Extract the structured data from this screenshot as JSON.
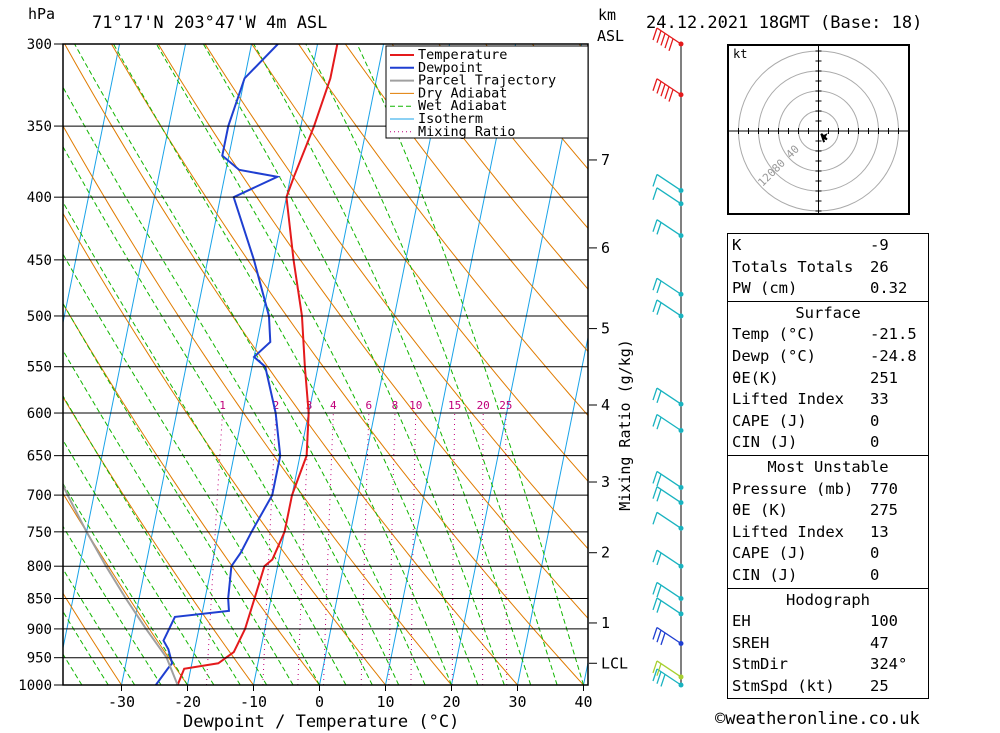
{
  "header": {
    "location": "71°17'N  203°47'W  4m  ASL",
    "datetime": "24.12.2021  18GMT  (Base: 18)",
    "hpa_label": "hPa",
    "km_label": "km",
    "asl_label": "ASL"
  },
  "colors": {
    "temperature": "#e41a1c",
    "dewpoint": "#1f3fd1",
    "parcel": "#a0a0a0",
    "dry_adiabat": "#e07b00",
    "wet_adiabat": "#11b500",
    "isotherm": "#1aa3e8",
    "mixing_ratio": "#c0007a",
    "wind_barb": "#19b3c0"
  },
  "chart_data": {
    "type": "line",
    "title": "",
    "xlabel": "Dewpoint / Temperature (°C)",
    "ylabel": "hPa",
    "xlim": [
      -40,
      40
    ],
    "pressure_levels": [
      300,
      350,
      400,
      450,
      500,
      550,
      600,
      650,
      700,
      750,
      800,
      850,
      900,
      950,
      1000
    ],
    "x_ticks": [
      -30,
      -20,
      -10,
      0,
      10,
      20,
      30,
      40
    ],
    "km_ticks": [
      {
        "label": "7",
        "p": 373
      },
      {
        "label": "6",
        "p": 440
      },
      {
        "label": "5",
        "p": 512
      },
      {
        "label": "4",
        "p": 591
      },
      {
        "label": "3",
        "p": 683
      },
      {
        "label": "2",
        "p": 780
      },
      {
        "label": "1",
        "p": 890
      },
      {
        "label": "LCL",
        "p": 960
      }
    ],
    "mixing_ratio_label": "Mixing Ratio (g/kg)",
    "mixing_ratio_values": [
      1,
      2,
      3,
      4,
      6,
      8,
      10,
      15,
      20,
      25
    ],
    "series": [
      {
        "name": "Temperature",
        "points": [
          [
            1000,
            -21.5
          ],
          [
            970,
            -21
          ],
          [
            960,
            -16
          ],
          [
            940,
            -14
          ],
          [
            920,
            -13.5
          ],
          [
            900,
            -13
          ],
          [
            850,
            -12.5
          ],
          [
            800,
            -12
          ],
          [
            790,
            -11
          ],
          [
            750,
            -10
          ],
          [
            700,
            -10
          ],
          [
            650,
            -9
          ],
          [
            600,
            -10
          ],
          [
            550,
            -12
          ],
          [
            500,
            -14
          ],
          [
            450,
            -17
          ],
          [
            400,
            -20
          ],
          [
            385,
            -19.5
          ],
          [
            350,
            -18
          ],
          [
            320,
            -17
          ],
          [
            300,
            -17
          ]
        ]
      },
      {
        "name": "Dewpoint",
        "points": [
          [
            1000,
            -24.8
          ],
          [
            970,
            -23.5
          ],
          [
            960,
            -23
          ],
          [
            935,
            -24
          ],
          [
            920,
            -25
          ],
          [
            880,
            -24
          ],
          [
            870,
            -16
          ],
          [
            850,
            -16.5
          ],
          [
            800,
            -17
          ],
          [
            780,
            -16
          ],
          [
            750,
            -15
          ],
          [
            700,
            -13
          ],
          [
            650,
            -13
          ],
          [
            600,
            -15
          ],
          [
            550,
            -18
          ],
          [
            540,
            -20
          ],
          [
            525,
            -18
          ],
          [
            500,
            -19
          ],
          [
            450,
            -23
          ],
          [
            400,
            -28
          ],
          [
            385,
            -22
          ],
          [
            380,
            -28
          ],
          [
            370,
            -31
          ],
          [
            350,
            -31
          ],
          [
            320,
            -30
          ],
          [
            300,
            -26
          ]
        ]
      },
      {
        "name": "Parcel Trajectory",
        "points": [
          [
            1000,
            -21.5
          ],
          [
            950,
            -24
          ],
          [
            900,
            -28
          ],
          [
            850,
            -32
          ],
          [
            800,
            -36
          ],
          [
            750,
            -40
          ],
          [
            700,
            -44
          ],
          [
            650,
            -48
          ],
          [
            630,
            -50
          ]
        ]
      }
    ],
    "legend": [
      "Temperature",
      "Dewpoint",
      "Parcel Trajectory",
      "Dry Adiabat",
      "Wet Adiabat",
      "Isotherm",
      "Mixing Ratio"
    ],
    "legend_position": "top-right",
    "wind_barbs": [
      {
        "p": 1000,
        "speed": 25,
        "color": "#19b3c0"
      },
      {
        "p": 985,
        "speed": 20,
        "color": "#a8d030"
      },
      {
        "p": 925,
        "speed": 30,
        "color": "#1f3fd1"
      },
      {
        "p": 875,
        "speed": 20,
        "color": "#19b3c0"
      },
      {
        "p": 850,
        "speed": 20,
        "color": "#19b3c0"
      },
      {
        "p": 800,
        "speed": 15,
        "color": "#19b3c0"
      },
      {
        "p": 745,
        "speed": 10,
        "color": "#19b3c0"
      },
      {
        "p": 710,
        "speed": 15,
        "color": "#19b3c0"
      },
      {
        "p": 690,
        "speed": 15,
        "color": "#19b3c0"
      },
      {
        "p": 620,
        "speed": 15,
        "color": "#19b3c0"
      },
      {
        "p": 590,
        "speed": 15,
        "color": "#19b3c0"
      },
      {
        "p": 500,
        "speed": 15,
        "color": "#19b3c0"
      },
      {
        "p": 480,
        "speed": 20,
        "color": "#19b3c0"
      },
      {
        "p": 430,
        "speed": 15,
        "color": "#19b3c0"
      },
      {
        "p": 405,
        "speed": 10,
        "color": "#19b3c0"
      },
      {
        "p": 395,
        "speed": 10,
        "color": "#19b3c0"
      },
      {
        "p": 330,
        "speed": 50,
        "color": "#e41a1c"
      },
      {
        "p": 300,
        "speed": 50,
        "color": "#e41a1c"
      }
    ],
    "hodograph": {
      "unit_label": "kt",
      "ring_labels": [
        "40",
        "80",
        "120"
      ],
      "points_kt": [
        [
          3,
          -4
        ],
        [
          5,
          -3
        ],
        [
          4,
          -5
        ],
        [
          6,
          -6
        ],
        [
          2,
          -2
        ],
        [
          4,
          -8
        ]
      ]
    }
  },
  "stats": {
    "top": [
      {
        "label": "K",
        "value": "-9"
      },
      {
        "label": "Totals Totals",
        "value": "26"
      },
      {
        "label": "PW (cm)",
        "value": "0.32"
      }
    ],
    "surface": {
      "title": "Surface",
      "rows": [
        {
          "label": "Temp (°C)",
          "value": "-21.5"
        },
        {
          "label": "Dewp (°C)",
          "value": "-24.8"
        },
        {
          "label": "θE(K)",
          "value": "251"
        },
        {
          "label": "Lifted Index",
          "value": "33"
        },
        {
          "label": "CAPE (J)",
          "value": "0"
        },
        {
          "label": "CIN (J)",
          "value": "0"
        }
      ]
    },
    "most_unstable": {
      "title": "Most Unstable",
      "rows": [
        {
          "label": "Pressure (mb)",
          "value": "770"
        },
        {
          "label": "θE (K)",
          "value": "275"
        },
        {
          "label": "Lifted Index",
          "value": "13"
        },
        {
          "label": "CAPE (J)",
          "value": "0"
        },
        {
          "label": "CIN (J)",
          "value": "0"
        }
      ]
    },
    "hodograph": {
      "title": "Hodograph",
      "rows": [
        {
          "label": "EH",
          "value": "100"
        },
        {
          "label": "SREH",
          "value": "47"
        },
        {
          "label": "StmDir",
          "value": "324°"
        },
        {
          "label": "StmSpd (kt)",
          "value": "25"
        }
      ]
    }
  },
  "footer": {
    "copyright": "©weatheronline.co.uk"
  }
}
